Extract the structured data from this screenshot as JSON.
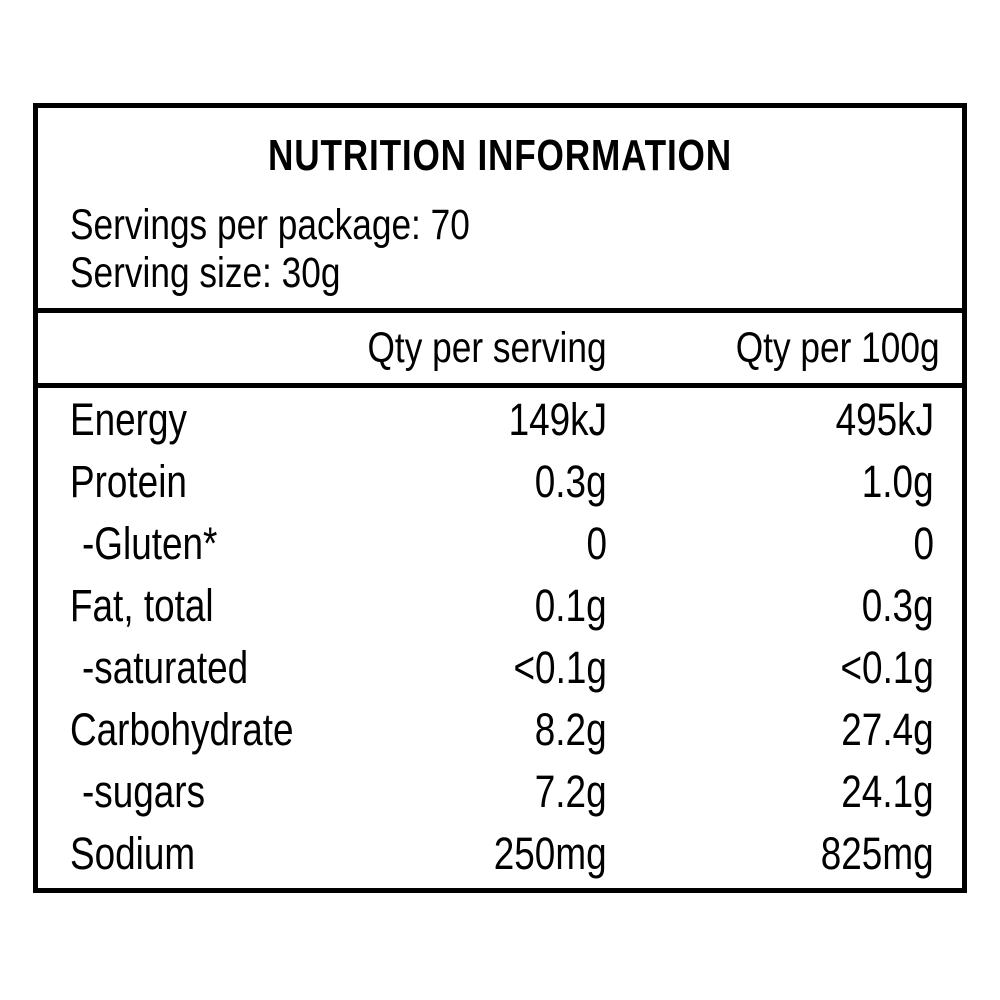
{
  "panel": {
    "title": "NUTRITION INFORMATION",
    "servings_per_package": "Servings per package: 70",
    "serving_size": "Serving size: 30g"
  },
  "columns": {
    "per_serving": "Qty per serving",
    "per_100g": "Qty per 100g"
  },
  "rows": [
    {
      "label": "Energy",
      "per_serving": "149kJ",
      "per_100g": "495kJ"
    },
    {
      "label": "Protein",
      "per_serving": "0.3g",
      "per_100g": "1.0g"
    },
    {
      "label": "-Gluten*",
      "per_serving": "0",
      "per_100g": "0"
    },
    {
      "label": "Fat, total",
      "per_serving": "0.1g",
      "per_100g": "0.3g"
    },
    {
      "label": "-saturated",
      "per_serving": "<0.1g",
      "per_100g": "<0.1g"
    },
    {
      "label": "Carbohydrate",
      "per_serving": "8.2g",
      "per_100g": "27.4g"
    },
    {
      "label": "-sugars",
      "per_serving": "7.2g",
      "per_100g": "24.1g"
    },
    {
      "label": "Sodium",
      "per_serving": "250mg",
      "per_100g": "825mg"
    }
  ]
}
